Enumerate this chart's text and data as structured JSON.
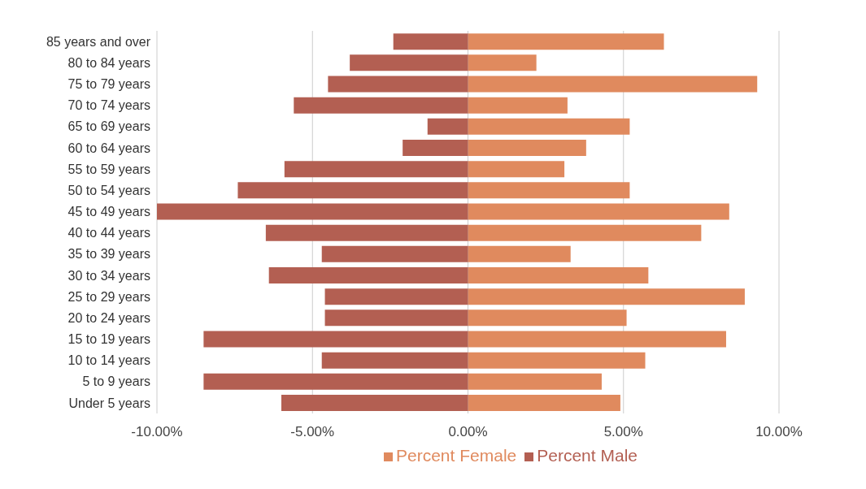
{
  "chart_data": {
    "type": "bar",
    "orientation": "horizontal",
    "stacked": true,
    "categories": [
      "85 years and over",
      "80 to 84 years",
      "75 to 79 years",
      "70 to 74 years",
      "65 to 69 years",
      "60 to 64 years",
      "55 to 59 years",
      "50 to 54 years",
      "45 to 49 years",
      "40 to 44 years",
      "35 to 39 years",
      "30 to 34 years",
      "25 to 29 years",
      "20 to 24 years",
      "15 to 19 years",
      "10 to 14 years",
      "5 to 9 years",
      "Under 5 years"
    ],
    "series": [
      {
        "name": "Percent Female",
        "color": "#e08a5e",
        "values": [
          6.3,
          2.2,
          9.3,
          3.2,
          5.2,
          3.8,
          3.1,
          5.2,
          8.4,
          7.5,
          3.3,
          5.8,
          8.9,
          5.1,
          8.3,
          5.7,
          4.3,
          4.9
        ]
      },
      {
        "name": "Percent Male",
        "color": "#b35f52",
        "values": [
          -2.4,
          -3.8,
          -4.5,
          -5.6,
          -1.3,
          -2.1,
          -5.9,
          -7.4,
          -10.0,
          -6.5,
          -4.7,
          -6.4,
          -4.6,
          -4.6,
          -8.5,
          -4.7,
          -8.5,
          -6.0
        ]
      }
    ],
    "xlim": [
      -10,
      10
    ],
    "xticks": [
      {
        "value": -10,
        "label": "-10.00%"
      },
      {
        "value": -5,
        "label": "-5.00%"
      },
      {
        "value": 0,
        "label": "0.00%"
      },
      {
        "value": 5,
        "label": "5.00%"
      },
      {
        "value": 10,
        "label": "10.00%"
      }
    ],
    "grid": "x",
    "legend": "bottom"
  }
}
